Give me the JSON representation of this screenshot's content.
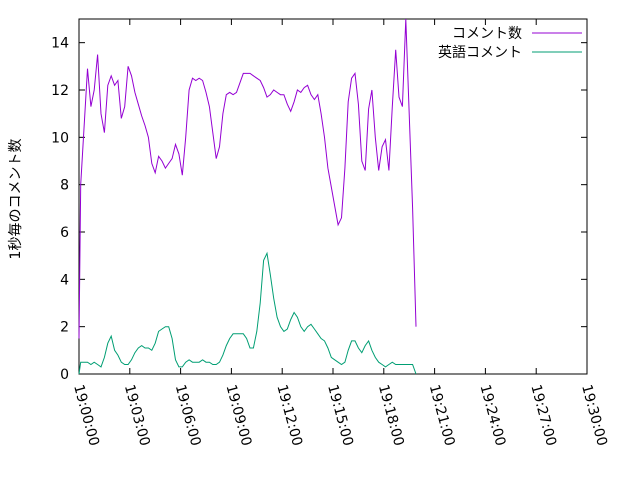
{
  "chart_data": {
    "type": "line",
    "title": "",
    "xlabel": "",
    "ylabel": "1秒毎のコメント数",
    "x_unit": "time (HH:MM:SS)",
    "xlim": [
      "19:00:00",
      "19:30:00"
    ],
    "ylim": [
      0,
      15
    ],
    "x_ticks": [
      "19:00:00",
      "19:03:00",
      "19:06:00",
      "19:09:00",
      "19:12:00",
      "19:15:00",
      "19:18:00",
      "19:21:00",
      "19:24:00",
      "19:27:00",
      "19:30:00"
    ],
    "y_ticks": [
      0,
      2,
      4,
      6,
      8,
      10,
      12,
      14
    ],
    "grid": false,
    "legend": "top-right",
    "series": [
      {
        "name": "コメント数",
        "color": "#9400d3",
        "points": [
          [
            "19:00:00",
            1.5
          ],
          [
            "19:00:06",
            8.0
          ],
          [
            "19:00:30",
            12.9
          ],
          [
            "19:00:42",
            11.3
          ],
          [
            "19:00:54",
            12.0
          ],
          [
            "19:01:06",
            13.5
          ],
          [
            "19:01:18",
            11.0
          ],
          [
            "19:01:30",
            10.2
          ],
          [
            "19:01:42",
            12.2
          ],
          [
            "19:01:54",
            12.6
          ],
          [
            "19:02:06",
            12.2
          ],
          [
            "19:02:18",
            12.4
          ],
          [
            "19:02:30",
            10.8
          ],
          [
            "19:02:42",
            11.3
          ],
          [
            "19:02:54",
            13.0
          ],
          [
            "19:03:06",
            12.6
          ],
          [
            "19:03:18",
            11.9
          ],
          [
            "19:03:30",
            11.4
          ],
          [
            "19:03:42",
            10.9
          ],
          [
            "19:03:54",
            10.5
          ],
          [
            "19:04:06",
            10.0
          ],
          [
            "19:04:18",
            8.9
          ],
          [
            "19:04:30",
            8.5
          ],
          [
            "19:04:42",
            9.2
          ],
          [
            "19:04:54",
            9.0
          ],
          [
            "19:05:06",
            8.7
          ],
          [
            "19:05:18",
            8.9
          ],
          [
            "19:05:30",
            9.1
          ],
          [
            "19:05:42",
            9.7
          ],
          [
            "19:05:54",
            9.3
          ],
          [
            "19:06:06",
            8.4
          ],
          [
            "19:06:18",
            10.0
          ],
          [
            "19:06:30",
            12.0
          ],
          [
            "19:06:42",
            12.5
          ],
          [
            "19:06:54",
            12.4
          ],
          [
            "19:07:06",
            12.5
          ],
          [
            "19:07:18",
            12.4
          ],
          [
            "19:07:30",
            11.9
          ],
          [
            "19:07:42",
            11.3
          ],
          [
            "19:07:54",
            10.2
          ],
          [
            "19:08:06",
            9.1
          ],
          [
            "19:08:18",
            9.6
          ],
          [
            "19:08:30",
            11.0
          ],
          [
            "19:08:42",
            11.8
          ],
          [
            "19:08:54",
            11.9
          ],
          [
            "19:09:06",
            11.8
          ],
          [
            "19:09:18",
            11.9
          ],
          [
            "19:09:30",
            12.3
          ],
          [
            "19:09:42",
            12.7
          ],
          [
            "19:09:54",
            12.7
          ],
          [
            "19:10:06",
            12.7
          ],
          [
            "19:10:18",
            12.6
          ],
          [
            "19:10:30",
            12.5
          ],
          [
            "19:10:42",
            12.4
          ],
          [
            "19:10:54",
            12.1
          ],
          [
            "19:11:06",
            11.7
          ],
          [
            "19:11:18",
            11.8
          ],
          [
            "19:11:30",
            12.0
          ],
          [
            "19:11:42",
            11.9
          ],
          [
            "19:11:54",
            11.8
          ],
          [
            "19:12:06",
            11.8
          ],
          [
            "19:12:18",
            11.4
          ],
          [
            "19:12:30",
            11.1
          ],
          [
            "19:12:42",
            11.5
          ],
          [
            "19:12:54",
            12.0
          ],
          [
            "19:13:06",
            11.9
          ],
          [
            "19:13:18",
            12.1
          ],
          [
            "19:13:30",
            12.2
          ],
          [
            "19:13:42",
            11.8
          ],
          [
            "19:13:54",
            11.6
          ],
          [
            "19:14:06",
            11.8
          ],
          [
            "19:14:18",
            11.0
          ],
          [
            "19:14:30",
            10.0
          ],
          [
            "19:14:42",
            8.7
          ],
          [
            "19:14:54",
            7.9
          ],
          [
            "19:15:06",
            7.1
          ],
          [
            "19:15:18",
            6.3
          ],
          [
            "19:15:30",
            6.6
          ],
          [
            "19:15:42",
            8.7
          ],
          [
            "19:15:54",
            11.5
          ],
          [
            "19:16:06",
            12.5
          ],
          [
            "19:16:18",
            12.7
          ],
          [
            "19:16:30",
            11.4
          ],
          [
            "19:16:42",
            9.0
          ],
          [
            "19:16:54",
            8.6
          ],
          [
            "19:17:06",
            11.2
          ],
          [
            "19:17:18",
            12.0
          ],
          [
            "19:17:30",
            10.0
          ],
          [
            "19:17:42",
            8.6
          ],
          [
            "19:17:54",
            9.6
          ],
          [
            "19:18:06",
            9.9
          ],
          [
            "19:18:18",
            8.6
          ],
          [
            "19:18:30",
            11.3
          ],
          [
            "19:18:42",
            13.7
          ],
          [
            "19:18:54",
            11.7
          ],
          [
            "19:19:06",
            11.3
          ],
          [
            "19:19:18",
            15.0
          ],
          [
            "19:19:30",
            11.0
          ],
          [
            "19:19:42",
            7.0
          ],
          [
            "19:19:54",
            2.0
          ]
        ]
      },
      {
        "name": "英語コメント",
        "color": "#009e73",
        "points": [
          [
            "19:00:00",
            0.0
          ],
          [
            "19:00:06",
            0.5
          ],
          [
            "19:00:30",
            0.5
          ],
          [
            "19:00:42",
            0.4
          ],
          [
            "19:00:54",
            0.5
          ],
          [
            "19:01:06",
            0.4
          ],
          [
            "19:01:18",
            0.3
          ],
          [
            "19:01:30",
            0.7
          ],
          [
            "19:01:42",
            1.3
          ],
          [
            "19:01:54",
            1.6
          ],
          [
            "19:02:06",
            1.0
          ],
          [
            "19:02:18",
            0.8
          ],
          [
            "19:02:30",
            0.5
          ],
          [
            "19:02:42",
            0.4
          ],
          [
            "19:02:54",
            0.4
          ],
          [
            "19:03:06",
            0.6
          ],
          [
            "19:03:18",
            0.9
          ],
          [
            "19:03:30",
            1.1
          ],
          [
            "19:03:42",
            1.2
          ],
          [
            "19:03:54",
            1.1
          ],
          [
            "19:04:06",
            1.1
          ],
          [
            "19:04:18",
            1.0
          ],
          [
            "19:04:30",
            1.3
          ],
          [
            "19:04:42",
            1.8
          ],
          [
            "19:04:54",
            1.9
          ],
          [
            "19:05:06",
            2.0
          ],
          [
            "19:05:18",
            2.0
          ],
          [
            "19:05:30",
            1.5
          ],
          [
            "19:05:42",
            0.6
          ],
          [
            "19:05:54",
            0.3
          ],
          [
            "19:06:06",
            0.3
          ],
          [
            "19:06:18",
            0.5
          ],
          [
            "19:06:30",
            0.6
          ],
          [
            "19:06:42",
            0.5
          ],
          [
            "19:06:54",
            0.5
          ],
          [
            "19:07:06",
            0.5
          ],
          [
            "19:07:18",
            0.6
          ],
          [
            "19:07:30",
            0.5
          ],
          [
            "19:07:42",
            0.5
          ],
          [
            "19:07:54",
            0.4
          ],
          [
            "19:08:06",
            0.4
          ],
          [
            "19:08:18",
            0.5
          ],
          [
            "19:08:30",
            0.8
          ],
          [
            "19:08:42",
            1.2
          ],
          [
            "19:08:54",
            1.5
          ],
          [
            "19:09:06",
            1.7
          ],
          [
            "19:09:18",
            1.7
          ],
          [
            "19:09:30",
            1.7
          ],
          [
            "19:09:42",
            1.7
          ],
          [
            "19:09:54",
            1.5
          ],
          [
            "19:10:06",
            1.1
          ],
          [
            "19:10:18",
            1.1
          ],
          [
            "19:10:30",
            1.8
          ],
          [
            "19:10:42",
            3.0
          ],
          [
            "19:10:54",
            4.8
          ],
          [
            "19:11:06",
            5.1
          ],
          [
            "19:11:18",
            4.2
          ],
          [
            "19:11:30",
            3.2
          ],
          [
            "19:11:42",
            2.4
          ],
          [
            "19:11:54",
            2.0
          ],
          [
            "19:12:06",
            1.8
          ],
          [
            "19:12:18",
            1.9
          ],
          [
            "19:12:30",
            2.3
          ],
          [
            "19:12:42",
            2.6
          ],
          [
            "19:12:54",
            2.4
          ],
          [
            "19:13:06",
            2.0
          ],
          [
            "19:13:18",
            1.8
          ],
          [
            "19:13:30",
            2.0
          ],
          [
            "19:13:42",
            2.1
          ],
          [
            "19:13:54",
            1.9
          ],
          [
            "19:14:06",
            1.7
          ],
          [
            "19:14:18",
            1.5
          ],
          [
            "19:14:30",
            1.4
          ],
          [
            "19:14:42",
            1.1
          ],
          [
            "19:14:54",
            0.7
          ],
          [
            "19:15:06",
            0.6
          ],
          [
            "19:15:18",
            0.5
          ],
          [
            "19:15:30",
            0.4
          ],
          [
            "19:15:42",
            0.5
          ],
          [
            "19:15:54",
            1.0
          ],
          [
            "19:16:06",
            1.4
          ],
          [
            "19:16:18",
            1.4
          ],
          [
            "19:16:30",
            1.1
          ],
          [
            "19:16:42",
            0.9
          ],
          [
            "19:16:54",
            1.2
          ],
          [
            "19:17:06",
            1.4
          ],
          [
            "19:17:18",
            1.0
          ],
          [
            "19:17:30",
            0.7
          ],
          [
            "19:17:42",
            0.5
          ],
          [
            "19:17:54",
            0.4
          ],
          [
            "19:18:06",
            0.3
          ],
          [
            "19:18:18",
            0.4
          ],
          [
            "19:18:30",
            0.5
          ],
          [
            "19:18:42",
            0.4
          ],
          [
            "19:18:54",
            0.4
          ],
          [
            "19:19:06",
            0.4
          ],
          [
            "19:19:18",
            0.4
          ],
          [
            "19:19:30",
            0.4
          ],
          [
            "19:19:42",
            0.4
          ],
          [
            "19:19:54",
            0.0
          ]
        ]
      }
    ]
  }
}
